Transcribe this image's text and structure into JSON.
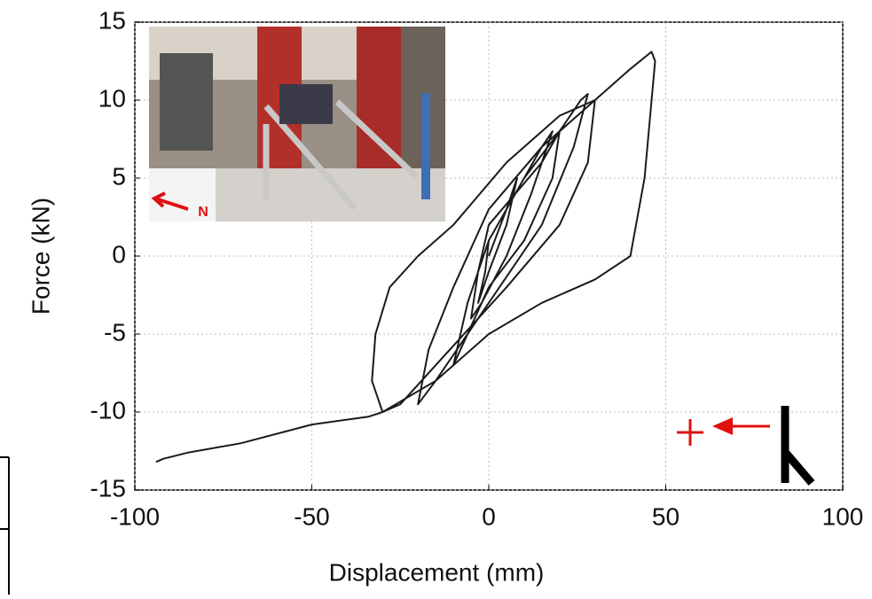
{
  "chart_data": {
    "type": "line",
    "xlabel": "Displacement (mm)",
    "ylabel": "Force (kN)",
    "inset_label": "N",
    "color": "#1a1a1a",
    "x": [
      0,
      5,
      8,
      5,
      0,
      -3,
      -1,
      0,
      10,
      15,
      18,
      12,
      5,
      -2,
      -5,
      -3,
      0,
      15,
      20,
      18,
      10,
      0,
      -8,
      -10,
      -6,
      0,
      10,
      20,
      26,
      28,
      24,
      15,
      0,
      -15,
      -20,
      -17,
      -10,
      0,
      15,
      25,
      30,
      28,
      20,
      5,
      -15,
      -25,
      -30,
      -33,
      -32,
      -28,
      -20,
      -10,
      5,
      20,
      30,
      40,
      46,
      47,
      44,
      40,
      30,
      15,
      0,
      -15,
      -30,
      -34,
      -50,
      -70,
      -85,
      -92,
      -94
    ],
    "values": [
      0,
      3,
      5,
      2,
      -1,
      -3,
      -1,
      1,
      5,
      7,
      8,
      4,
      0,
      -3,
      -4,
      -1,
      2,
      6,
      8,
      5,
      1,
      -2,
      -6,
      -7,
      -3,
      1,
      5,
      8,
      10,
      10.4,
      7,
      2,
      -3,
      -8,
      -9.5,
      -6,
      -2,
      3,
      7,
      9,
      10,
      6,
      2,
      -2,
      -7,
      -9.5,
      -10,
      -8,
      -5,
      -2,
      0,
      2,
      6,
      9,
      10,
      12,
      13.1,
      12.5,
      5,
      0,
      -1.5,
      -3,
      -5,
      -8,
      -10,
      -10.3,
      -10.8,
      -12,
      -12.6,
      -13,
      -13.2
    ],
    "xlim": [
      -100,
      100
    ],
    "xticks": [
      -100,
      -50,
      0,
      50,
      100
    ],
    "ylim": [
      -15,
      15
    ],
    "yticks": [
      -15,
      -10,
      -5,
      0,
      5,
      10,
      15
    ],
    "grid": true
  }
}
